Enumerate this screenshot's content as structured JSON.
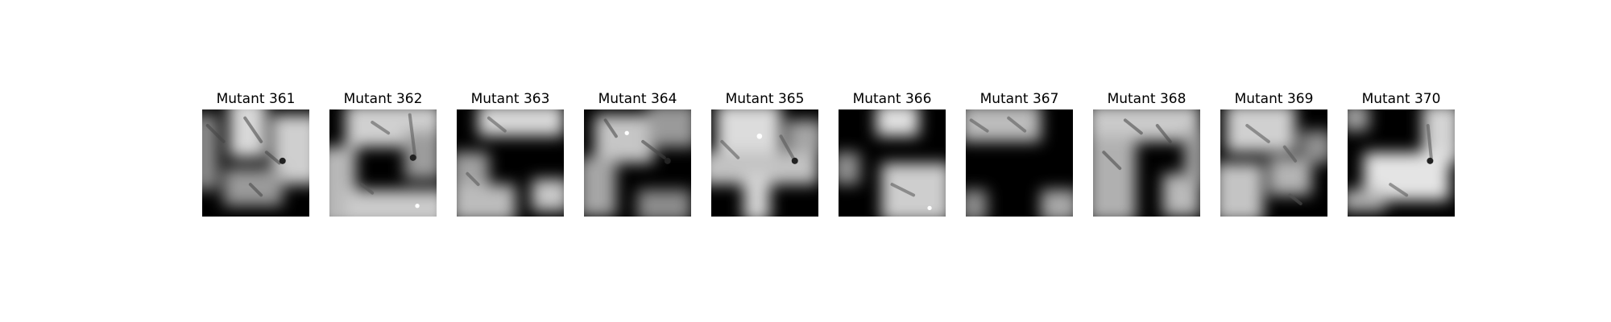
{
  "figure": {
    "panels": [
      {
        "title": "Mutant 361",
        "image": "grayscale-mutant-361"
      },
      {
        "title": "Mutant 362",
        "image": "grayscale-mutant-362"
      },
      {
        "title": "Mutant 363",
        "image": "grayscale-mutant-363"
      },
      {
        "title": "Mutant 364",
        "image": "grayscale-mutant-364"
      },
      {
        "title": "Mutant 365",
        "image": "grayscale-mutant-365"
      },
      {
        "title": "Mutant 366",
        "image": "grayscale-mutant-366"
      },
      {
        "title": "Mutant 367",
        "image": "grayscale-mutant-367"
      },
      {
        "title": "Mutant 368",
        "image": "grayscale-mutant-368"
      },
      {
        "title": "Mutant 369",
        "image": "grayscale-mutant-369"
      },
      {
        "title": "Mutant 370",
        "image": "grayscale-mutant-370"
      }
    ]
  }
}
